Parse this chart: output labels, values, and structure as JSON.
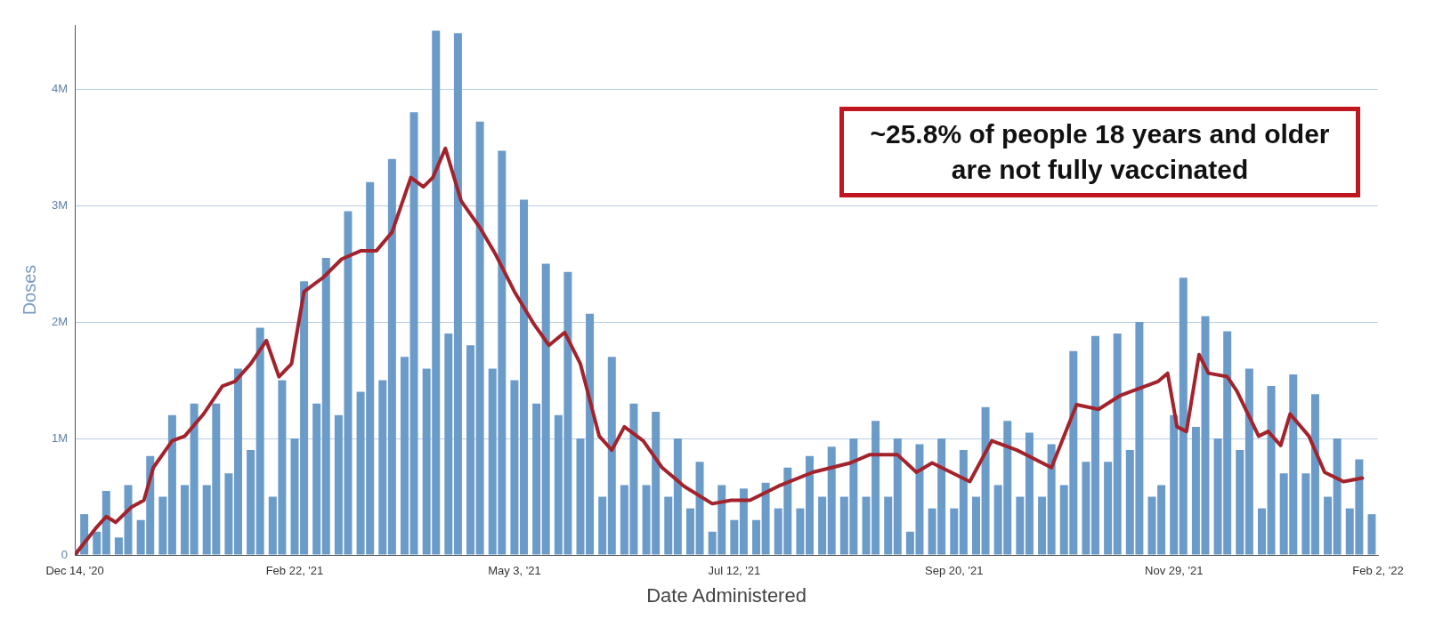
{
  "chart_data": {
    "type": "bar",
    "xlabel": "Date Administered",
    "ylabel": "Doses",
    "annotations": [
      "~25.8% of people 18 years and older are not fully vaccinated"
    ],
    "xlim": [
      "2020-12-14",
      "2022-02-02"
    ],
    "xticks": [
      {
        "value": "2020-12-14",
        "label": "Dec 14, '20"
      },
      {
        "value": "2021-02-22",
        "label": "Feb 22, '21"
      },
      {
        "value": "2021-05-03",
        "label": "May 3, '21"
      },
      {
        "value": "2021-07-12",
        "label": "Jul 12, '21"
      },
      {
        "value": "2021-09-20",
        "label": "Sep 20, '21"
      },
      {
        "value": "2021-11-29",
        "label": "Nov 29, '21"
      },
      {
        "value": "2022-02-02",
        "label": "Feb 2, '22"
      }
    ],
    "ylim": [
      0,
      4550000
    ],
    "yticks": [
      0,
      {
        "value": 1000000,
        "label": "1M"
      },
      {
        "value": 2000000,
        "label": "2M"
      },
      {
        "value": 3000000,
        "label": "3M"
      },
      {
        "value": 4000000,
        "label": "4M"
      }
    ],
    "grid": "y",
    "legend": false,
    "series": [
      {
        "color": "#6b9bc8",
        "x": [
          "2020-12-14",
          "2020-12-17",
          "2020-12-21",
          "2020-12-24",
          "2020-12-28",
          "2020-12-31",
          "2021-01-04",
          "2021-01-07",
          "2021-01-11",
          "2021-01-14",
          "2021-01-18",
          "2021-01-21",
          "2021-01-25",
          "2021-01-28",
          "2021-02-01",
          "2021-02-04",
          "2021-02-08",
          "2021-02-11",
          "2021-02-15",
          "2021-02-18",
          "2021-02-22",
          "2021-02-25",
          "2021-03-01",
          "2021-03-04",
          "2021-03-08",
          "2021-03-11",
          "2021-03-15",
          "2021-03-18",
          "2021-03-22",
          "2021-03-25",
          "2021-03-29",
          "2021-04-01",
          "2021-04-05",
          "2021-04-08",
          "2021-04-12",
          "2021-04-15",
          "2021-04-19",
          "2021-04-22",
          "2021-04-26",
          "2021-04-29",
          "2021-05-03",
          "2021-05-06",
          "2021-05-10",
          "2021-05-13",
          "2021-05-17",
          "2021-05-20",
          "2021-05-24",
          "2021-05-27",
          "2021-05-31",
          "2021-06-03",
          "2021-06-07",
          "2021-06-10",
          "2021-06-14",
          "2021-06-17",
          "2021-06-21",
          "2021-06-24",
          "2021-06-28",
          "2021-07-01",
          "2021-07-05",
          "2021-07-08",
          "2021-07-12",
          "2021-07-15",
          "2021-07-19",
          "2021-07-22",
          "2021-07-26",
          "2021-07-29",
          "2021-08-02",
          "2021-08-05",
          "2021-08-09",
          "2021-08-12",
          "2021-08-16",
          "2021-08-19",
          "2021-08-23",
          "2021-08-26",
          "2021-08-30",
          "2021-09-02",
          "2021-09-06",
          "2021-09-09",
          "2021-09-13",
          "2021-09-16",
          "2021-09-20",
          "2021-09-23",
          "2021-09-27",
          "2021-09-30",
          "2021-10-04",
          "2021-10-07",
          "2021-10-11",
          "2021-10-14",
          "2021-10-18",
          "2021-10-21",
          "2021-10-25",
          "2021-10-28",
          "2021-11-01",
          "2021-11-04",
          "2021-11-08",
          "2021-11-11",
          "2021-11-15",
          "2021-11-18",
          "2021-11-22",
          "2021-11-25",
          "2021-11-29",
          "2021-12-02",
          "2021-12-06",
          "2021-12-09",
          "2021-12-13",
          "2021-12-16",
          "2021-12-20",
          "2021-12-23",
          "2021-12-27",
          "2021-12-30",
          "2022-01-03",
          "2022-01-06",
          "2022-01-10",
          "2022-01-13",
          "2022-01-17",
          "2022-01-20",
          "2022-01-24",
          "2022-01-27",
          "2022-01-31"
        ],
        "values": [
          50000,
          350000,
          200000,
          550000,
          150000,
          600000,
          300000,
          850000,
          500000,
          1200000,
          600000,
          1300000,
          600000,
          1300000,
          700000,
          1600000,
          900000,
          1950000,
          500000,
          1500000,
          1000000,
          2350000,
          1300000,
          2550000,
          1200000,
          2950000,
          1400000,
          3200000,
          1500000,
          3400000,
          1700000,
          3800000,
          1600000,
          4500000,
          1900000,
          4480000,
          1800000,
          3720000,
          1600000,
          3470000,
          1500000,
          3050000,
          1300000,
          2500000,
          1200000,
          2430000,
          1000000,
          2070000,
          500000,
          1700000,
          600000,
          1300000,
          600000,
          1230000,
          500000,
          1000000,
          400000,
          800000,
          200000,
          600000,
          300000,
          570000,
          300000,
          620000,
          400000,
          750000,
          400000,
          850000,
          500000,
          930000,
          500000,
          1000000,
          500000,
          1150000,
          500000,
          1000000,
          200000,
          950000,
          400000,
          1000000,
          400000,
          900000,
          500000,
          1270000,
          600000,
          1150000,
          500000,
          1050000,
          500000,
          950000,
          600000,
          1750000,
          800000,
          1880000,
          800000,
          1900000,
          900000,
          2000000,
          500000,
          600000,
          1200000,
          2380000,
          1100000,
          2050000,
          1000000,
          1920000,
          900000,
          1600000,
          400000,
          1450000,
          700000,
          1550000,
          700000,
          1380000,
          500000,
          1000000,
          400000,
          820000,
          350000
        ]
      },
      {
        "type": "line",
        "color": "#a3232c",
        "x": [
          "2020-12-14",
          "2020-12-21",
          "2020-12-24",
          "2020-12-27",
          "2021-01-01",
          "2021-01-05",
          "2021-01-08",
          "2021-01-14",
          "2021-01-18",
          "2021-01-24",
          "2021-01-30",
          "2021-02-03",
          "2021-02-08",
          "2021-02-13",
          "2021-02-17",
          "2021-02-21",
          "2021-02-25",
          "2021-03-03",
          "2021-03-09",
          "2021-03-15",
          "2021-03-20",
          "2021-03-25",
          "2021-03-31",
          "2021-04-04",
          "2021-04-07",
          "2021-04-11",
          "2021-04-16",
          "2021-04-22",
          "2021-04-27",
          "2021-05-03",
          "2021-05-09",
          "2021-05-14",
          "2021-05-19",
          "2021-05-24",
          "2021-05-30",
          "2021-06-03",
          "2021-06-07",
          "2021-06-13",
          "2021-06-19",
          "2021-06-26",
          "2021-07-05",
          "2021-07-11",
          "2021-07-17",
          "2021-07-26",
          "2021-08-06",
          "2021-08-18",
          "2021-08-24",
          "2021-09-02",
          "2021-09-08",
          "2021-09-13",
          "2021-09-25",
          "2021-10-02",
          "2021-10-10",
          "2021-10-21",
          "2021-10-29",
          "2021-11-05",
          "2021-11-12",
          "2021-11-24",
          "2021-11-27",
          "2021-11-30",
          "2021-12-03",
          "2021-12-07",
          "2021-12-10",
          "2021-12-16",
          "2021-12-19",
          "2021-12-26",
          "2021-12-29",
          "2022-01-02",
          "2022-01-05",
          "2022-01-11",
          "2022-01-16",
          "2022-01-22",
          "2022-01-28"
        ],
        "values": [
          0,
          240000,
          330000,
          280000,
          410000,
          470000,
          750000,
          980000,
          1020000,
          1210000,
          1450000,
          1490000,
          1640000,
          1840000,
          1530000,
          1640000,
          2260000,
          2380000,
          2540000,
          2610000,
          2610000,
          2770000,
          3240000,
          3160000,
          3240000,
          3490000,
          3040000,
          2810000,
          2580000,
          2260000,
          1990000,
          1800000,
          1910000,
          1640000,
          1020000,
          900000,
          1100000,
          980000,
          750000,
          590000,
          440000,
          470000,
          470000,
          590000,
          710000,
          790000,
          860000,
          860000,
          710000,
          790000,
          630000,
          980000,
          900000,
          750000,
          1290000,
          1250000,
          1370000,
          1490000,
          1560000,
          1100000,
          1060000,
          1720000,
          1560000,
          1530000,
          1410000,
          1020000,
          1060000,
          940000,
          1210000,
          1020000,
          710000,
          630000,
          660000
        ]
      }
    ]
  }
}
